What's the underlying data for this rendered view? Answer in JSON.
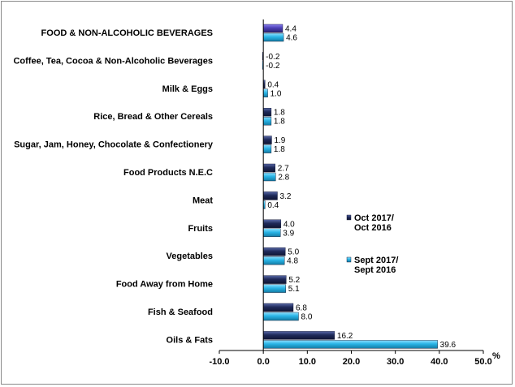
{
  "chart_data": {
    "type": "bar",
    "orientation": "horizontal",
    "categories": [
      "FOOD & NON-ALCOHOLIC BEVERAGES",
      "Coffee, Tea, Cocoa & Non-Alcoholic Beverages",
      "Milk & Eggs",
      "Rice, Bread & Other Cereals",
      "Sugar, Jam, Honey, Chocolate & Confectionery",
      "Food Products N.E.C",
      "Meat",
      "Fruits",
      "Vegetables",
      "Food Away from Home",
      "Fish & Seafood",
      "Oils & Fats"
    ],
    "series": [
      {
        "name": "Oct 2017/ Oct 2016",
        "legend_lines": [
          "Oct 2017/",
          "Oct 2016"
        ],
        "color": "#1f2a5a",
        "values": [
          4.4,
          -0.2,
          0.4,
          1.8,
          1.9,
          2.7,
          3.2,
          4.0,
          5.0,
          5.2,
          6.8,
          16.2
        ],
        "labels": [
          "4.4",
          "-0.2",
          "0.4",
          "1.8",
          "1.9",
          "2.7",
          "3.2",
          "4.0",
          "5.0",
          "5.2",
          "6.8",
          "16.2"
        ]
      },
      {
        "name": "Sept 2017/ Sept 2016",
        "legend_lines": [
          "Sept 2017/",
          "Sept 2016"
        ],
        "color": "#29b4e6",
        "values": [
          4.6,
          -0.2,
          1.0,
          1.8,
          1.8,
          2.8,
          0.4,
          3.9,
          4.8,
          5.1,
          8.0,
          39.6
        ],
        "labels": [
          "4.6",
          "-0.2",
          "1.0",
          "1.8",
          "1.8",
          "2.8",
          "0.4",
          "3.9",
          "4.8",
          "5.1",
          "8.0",
          "39.6"
        ]
      }
    ],
    "first_category_color": "#4b3fb5",
    "xlim": [
      -10,
      50
    ],
    "x_ticks": [
      "-10.0",
      "0.0",
      "10.0",
      "20.0",
      "30.0",
      "40.0",
      "50.0"
    ],
    "x_tick_values": [
      -10,
      0,
      10,
      20,
      30,
      40,
      50
    ],
    "x_unit": "%",
    "grid": false,
    "legend_position": "right"
  }
}
